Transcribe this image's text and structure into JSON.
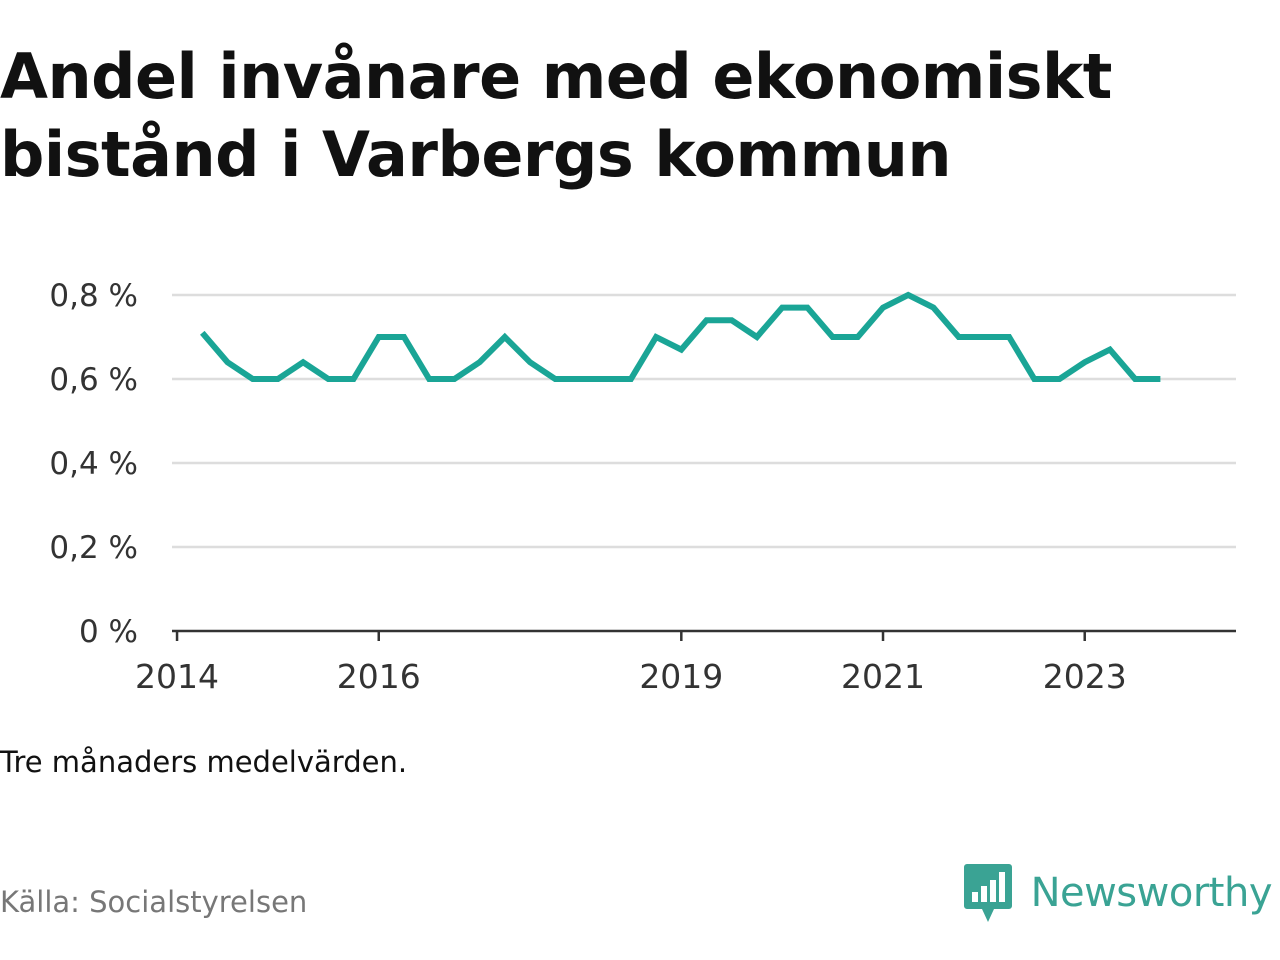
{
  "title": "Andel invånare med ekonomiskt bistånd i Varbergs kommun",
  "note": "Tre månaders medelvärden.",
  "source": "Källa: Socialstyrelsen",
  "brand": {
    "name": "Newsworthy",
    "icon": "newsworthy-logo-icon",
    "color": "#3aa394"
  },
  "chart_data": {
    "type": "line",
    "line_color": "#1aa596",
    "grid": true,
    "ylim": [
      0,
      0.8
    ],
    "y_ticks": [
      {
        "value": 0,
        "label": "0 %"
      },
      {
        "value": 0.2,
        "label": "0,2 %"
      },
      {
        "value": 0.4,
        "label": "0,4 %"
      },
      {
        "value": 0.6,
        "label": "0,6 %"
      },
      {
        "value": 0.8,
        "label": "0,8 %"
      }
    ],
    "x_ticks": [
      {
        "value": 2014,
        "label": "2014"
      },
      {
        "value": 2016,
        "label": "2016"
      },
      {
        "value": 2019,
        "label": "2019"
      },
      {
        "value": 2021,
        "label": "2021"
      },
      {
        "value": 2023,
        "label": "2023"
      }
    ],
    "xlim": [
      2013.95,
      2024.5
    ],
    "series": [
      {
        "x": [
          2014.25,
          2014.5,
          2014.75,
          2015.0,
          2015.25,
          2015.5,
          2015.75,
          2016.0,
          2016.25,
          2016.5,
          2016.75,
          2017.0,
          2017.25,
          2017.5,
          2017.75,
          2018.0,
          2018.25,
          2018.5,
          2018.75,
          2019.0,
          2019.25,
          2019.5,
          2019.75,
          2020.0,
          2020.25,
          2020.5,
          2020.75,
          2021.0,
          2021.25,
          2021.5,
          2021.75,
          2022.0,
          2022.25,
          2022.5,
          2022.75,
          2023.0,
          2023.25,
          2023.5,
          2023.75
        ],
        "values": [
          0.71,
          0.64,
          0.6,
          0.6,
          0.64,
          0.6,
          0.6,
          0.7,
          0.7,
          0.6,
          0.6,
          0.64,
          0.7,
          0.64,
          0.6,
          0.6,
          0.6,
          0.6,
          0.7,
          0.67,
          0.74,
          0.74,
          0.7,
          0.77,
          0.77,
          0.7,
          0.7,
          0.77,
          0.8,
          0.77,
          0.7,
          0.7,
          0.7,
          0.6,
          0.6,
          0.64,
          0.67,
          0.6,
          0.6
        ]
      }
    ]
  }
}
